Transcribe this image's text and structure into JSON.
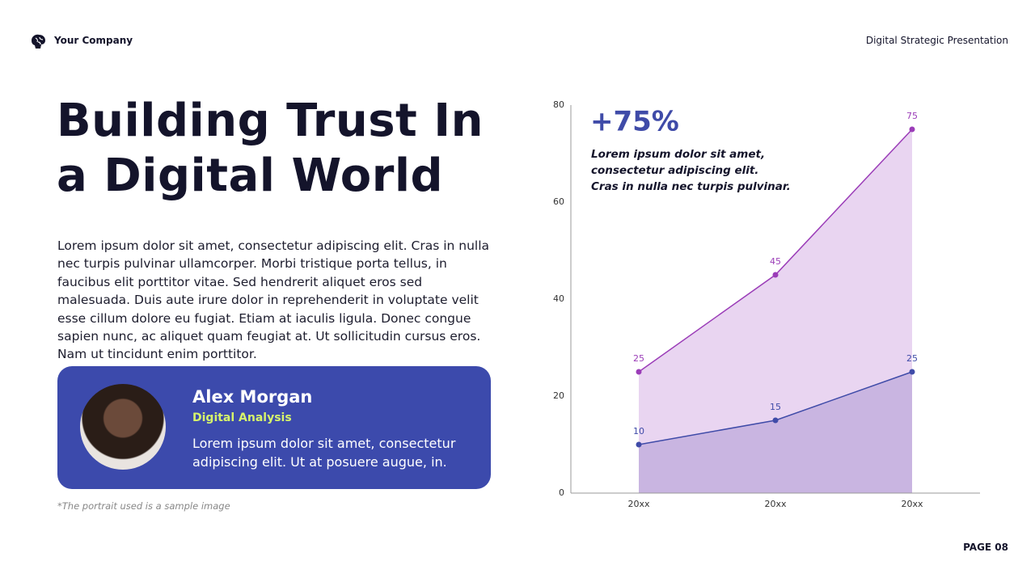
{
  "header": {
    "company": "Your Company",
    "presentation": "Digital Strategic Presentation"
  },
  "title_lines": [
    "Building Trust In",
    "a Digital World"
  ],
  "body": "Lorem ipsum dolor sit amet, consectetur adipiscing elit. Cras in nulla nec turpis pulvinar ullamcorper. Morbi tristique porta tellus, in faucibus elit porttitor vitae. Sed hendrerit aliquet eros sed malesuada. Duis aute irure dolor in reprehenderit in voluptate velit esse cillum dolore eu fugiat. Etiam at iaculis ligula. Donec congue sapien nunc, ac aliquet quam feugiat at. Ut sollicitudin cursus eros. Nam ut tincidunt enim porttitor.",
  "profile": {
    "name": "Alex Morgan",
    "role": "Digital Analysis",
    "text": "Lorem ipsum dolor sit amet, consectetur adipiscing elit. Ut at posuere augue, in."
  },
  "footnote": "*The portrait  used is a sample image",
  "page": "PAGE 08",
  "chart_data": {
    "type": "area",
    "annotation": {
      "headline": "+75%",
      "lines": [
        "Lorem ipsum dolor sit amet,",
        "consectetur adipiscing elit.",
        "Cras in nulla nec turpis pulvinar."
      ]
    },
    "categories": [
      "20xx",
      "20xx",
      "20xx"
    ],
    "series": [
      {
        "color": "#9b3db8",
        "fill": "#e9d5f1",
        "values": [
          25,
          45,
          75
        ]
      },
      {
        "color": "#3f4ba8",
        "fill": "#c9b5e1",
        "values": [
          10,
          15,
          25
        ]
      }
    ],
    "ylim": [
      0,
      80
    ],
    "yticks": [
      0,
      20,
      40,
      60,
      80
    ]
  }
}
